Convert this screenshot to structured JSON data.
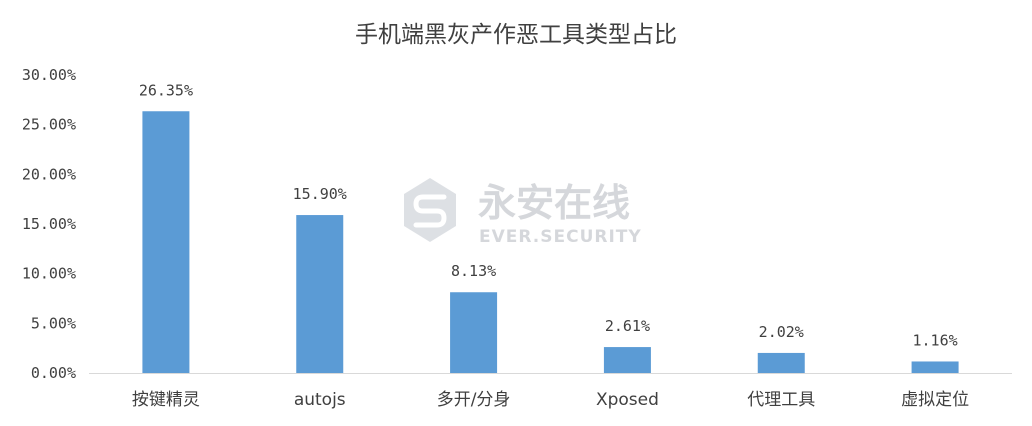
{
  "chart_data": {
    "type": "bar",
    "title": "手机端黑灰产作恶工具类型占比",
    "xlabel": "",
    "ylabel": "",
    "categories": [
      "按键精灵",
      "autojs",
      "多开/分身",
      "Xposed",
      "代理工具",
      "虚拟定位"
    ],
    "values": [
      26.35,
      15.9,
      8.13,
      2.61,
      2.02,
      1.16
    ],
    "data_labels": [
      "26.35%",
      "15.90%",
      "8.13%",
      "2.61%",
      "2.02%",
      "1.16%"
    ],
    "ylim": [
      0,
      30
    ],
    "yticks": [
      0,
      5,
      10,
      15,
      20,
      25,
      30
    ],
    "ytick_labels": [
      "0.00%",
      "5.00%",
      "10.00%",
      "15.00%",
      "20.00%",
      "25.00%",
      "30.00%"
    ],
    "grid": false,
    "legend": "none",
    "bar_color": "#5b9bd5"
  },
  "watermark": {
    "name": "永安在线",
    "sub": "EVER.SECURITY",
    "logo_icon": "s-shield-logo-icon"
  },
  "colors": {
    "bar": "#5b9bd5",
    "text": "#404040",
    "axis": "#d9d9d9",
    "watermark": "#b4b8be"
  }
}
